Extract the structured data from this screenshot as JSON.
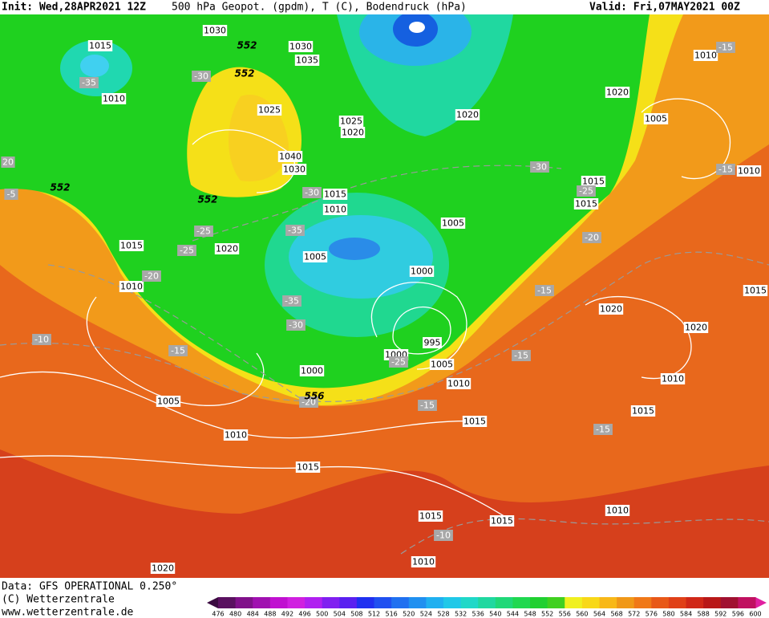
{
  "header": {
    "init": "Init: Wed,28APR2021 12Z",
    "title": "500 hPa Geopot. (gpdm), T (C), Bodendruck (hPa)",
    "valid": "Valid: Fri,07MAY2021 00Z"
  },
  "contour_labels": {
    "pressure": [
      "1015",
      "1010",
      "1030",
      "1030",
      "1035",
      "1025",
      "1025",
      "1020",
      "1040",
      "1030",
      "1015",
      "1010",
      "1020",
      "1020",
      "1005",
      "1010",
      "1015",
      "1015",
      "1010",
      "1005",
      "1015",
      "1020",
      "1005",
      "1000",
      "1010",
      "995",
      "1000",
      "1005",
      "1000",
      "1010",
      "1005",
      "1015",
      "1010",
      "1015",
      "1020",
      "1020",
      "1010",
      "1015",
      "1015",
      "1015",
      "1015",
      "1010",
      "1010",
      "1020"
    ],
    "temperature": [
      "-35",
      "-30",
      "-30",
      "-30",
      "-25",
      "-25",
      "-25",
      "-35",
      "-35",
      "-30",
      "-20",
      "-20",
      "-15",
      "-15",
      "-15",
      "-10",
      "-20",
      "-15",
      "-15",
      "-10",
      "-15",
      "-15",
      "20",
      "-5",
      "-25"
    ],
    "geopotential": [
      "552",
      "552",
      "552",
      "552",
      "556"
    ]
  },
  "footer": {
    "source": "Data: GFS OPERATIONAL 0.250°",
    "copyright": "(C) Wetterzentrale",
    "url": "www.wetterzentrale.de"
  },
  "colorbar": {
    "ticks": [
      476,
      480,
      484,
      488,
      492,
      496,
      500,
      504,
      508,
      512,
      516,
      520,
      524,
      528,
      532,
      536,
      540,
      544,
      548,
      552,
      556,
      560,
      564,
      568,
      572,
      576,
      580,
      584,
      588,
      592,
      596,
      600
    ],
    "colors": [
      "#5a1060",
      "#80108a",
      "#a010b0",
      "#c010d0",
      "#d020e0",
      "#b020f0",
      "#8020f0",
      "#5a20f0",
      "#2030f0",
      "#2050f0",
      "#2070f0",
      "#2090f0",
      "#20b0f0",
      "#20c8e8",
      "#20d8c8",
      "#20d8a0",
      "#20d878",
      "#20d850",
      "#20d030",
      "#40d020",
      "#f0f020",
      "#f8d818",
      "#f8b818",
      "#f09818",
      "#f07818",
      "#e85818",
      "#e04018",
      "#d02818",
      "#b81818",
      "#a01030",
      "#c01060"
    ]
  }
}
